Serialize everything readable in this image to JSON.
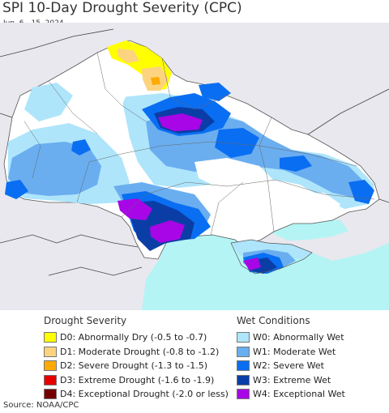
{
  "header": {
    "title": "SPI 10-Day Drought Severity (CPC)",
    "subtitle": "Jun. 6 - 15, 2024"
  },
  "legend": {
    "drought": {
      "heading": "Drought Severity",
      "items": [
        {
          "label": "D0: Abnormally Dry (-0.5 to -0.7)",
          "color": "#ffff00"
        },
        {
          "label": "D1: Moderate Drought (-0.8 to -1.2)",
          "color": "#fcd37f"
        },
        {
          "label": "D2: Severe Drought (-1.3 to -1.5)",
          "color": "#ffaa00"
        },
        {
          "label": "D3: Extreme Drought (-1.6 to -1.9)",
          "color": "#e60000"
        },
        {
          "label": "D4: Exceptional Drought (-2.0 or less)",
          "color": "#730000"
        }
      ]
    },
    "wet": {
      "heading": "Wet Conditions",
      "items": [
        {
          "label": "W0: Abnormally Wet",
          "color": "#aee5fb"
        },
        {
          "label": "W1: Moderate Wet",
          "color": "#6aaef0"
        },
        {
          "label": "W2: Severe Wet",
          "color": "#0a6ef2"
        },
        {
          "label": "W3: Extreme Wet",
          "color": "#0a3ea6"
        },
        {
          "label": "W4: Exceptional Wet",
          "color": "#a806e6"
        }
      ]
    }
  },
  "map_colors": {
    "land_outside": "#e8e8ee",
    "sea": "#b4f4f4",
    "land": "#ffffff"
  },
  "footer": {
    "source": "Source: NOAA/CPC"
  }
}
